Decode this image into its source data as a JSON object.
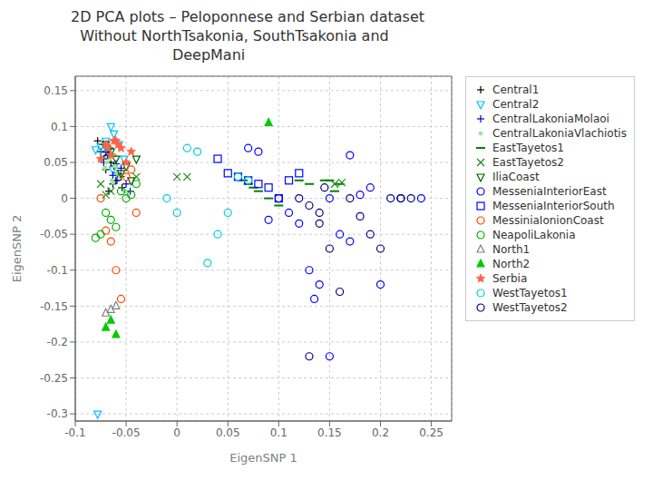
{
  "chart_data": {
    "type": "scatter",
    "title": "2D PCA plots – Peloponnese and Serbian dataset\n  Without NorthTsakonia, SouthTsakonia and\n                      DeepMani",
    "xlabel": "EigenSNP 1",
    "ylabel": "EigenSNP 2",
    "xlim": [
      -0.1,
      0.27
    ],
    "ylim": [
      -0.31,
      0.17
    ],
    "xticks": [
      -0.1,
      -0.05,
      0,
      0.05,
      0.1,
      0.15,
      0.2,
      0.25
    ],
    "yticks": [
      -0.3,
      -0.25,
      -0.2,
      -0.15,
      -0.1,
      -0.05,
      0,
      0.05,
      0.1,
      0.15
    ],
    "grid": true,
    "legend": "right",
    "series": [
      {
        "name": "Central1",
        "marker": "plus",
        "color": "#000000",
        "x": [
          -0.075,
          -0.068,
          -0.072,
          -0.065,
          -0.062,
          -0.07,
          -0.058,
          -0.055,
          -0.06,
          -0.063,
          -0.067,
          -0.073,
          -0.078,
          -0.054,
          -0.066
        ],
        "y": [
          0.065,
          0.06,
          0.055,
          0.05,
          0.045,
          0.04,
          0.035,
          0.03,
          0.025,
          0.02,
          0.01,
          0.075,
          0.08,
          0.015,
          0.07
        ]
      },
      {
        "name": "Central2",
        "marker": "triangle-down-open",
        "color": "#00BFFF",
        "x": [
          -0.057,
          -0.062,
          -0.07,
          -0.075,
          -0.08,
          -0.068,
          -0.072,
          -0.065,
          -0.063,
          -0.078,
          -0.052
        ],
        "y": [
          0.075,
          0.09,
          0.08,
          0.072,
          0.068,
          0.065,
          0.06,
          0.1,
          0.04,
          -0.3,
          0.055
        ]
      },
      {
        "name": "CentralLakoniaMolaoi",
        "marker": "plus",
        "color": "#0000CD",
        "x": [
          -0.068,
          -0.072,
          -0.06,
          -0.055,
          -0.063,
          -0.059,
          -0.05,
          -0.046,
          -0.07
        ],
        "y": [
          0.06,
          0.05,
          0.048,
          0.042,
          0.032,
          0.025,
          0.02,
          0.01,
          0.065
        ]
      },
      {
        "name": "CentralLakoniaVlachiotis",
        "marker": "point",
        "color": "#90EE90",
        "x": [
          -0.066,
          -0.061,
          -0.071,
          -0.059,
          -0.056,
          -0.064,
          -0.063,
          -0.069,
          -0.061,
          -0.051
        ],
        "y": [
          0.055,
          0.045,
          0.042,
          0.036,
          0.03,
          0.025,
          0.022,
          0.05,
          0.06,
          0.01
        ]
      },
      {
        "name": "EastTayetos1",
        "marker": "hline",
        "color": "#008000",
        "x": [
          0.065,
          0.07,
          0.075,
          0.08,
          0.09,
          0.1,
          0.12,
          0.145,
          0.155,
          0.13,
          0.15,
          0.16
        ],
        "y": [
          0.025,
          0.02,
          0.015,
          0.01,
          0.0,
          -0.01,
          0.025,
          0.025,
          0.01,
          0.02,
          0.025,
          0.02
        ]
      },
      {
        "name": "EastTayetos2",
        "marker": "x",
        "color": "#228B22",
        "x": [
          -0.075,
          -0.065,
          -0.07,
          -0.04,
          0.0,
          0.01,
          0.155,
          0.162
        ],
        "y": [
          0.02,
          0.01,
          0.005,
          0.03,
          0.03,
          0.03,
          0.02,
          0.022
        ]
      },
      {
        "name": "IliaCoast",
        "marker": "triangle-down-open",
        "color": "#006400",
        "x": [
          -0.07,
          -0.065,
          -0.06,
          -0.05,
          -0.04,
          -0.055,
          -0.045
        ],
        "y": [
          0.075,
          0.065,
          0.055,
          0.045,
          0.055,
          0.035,
          0.025
        ]
      },
      {
        "name": "MesseniaInteriorEast",
        "marker": "circle-open",
        "color": "#0000FF",
        "x": [
          0.07,
          0.08,
          0.09,
          0.1,
          0.11,
          0.12,
          0.13,
          0.14,
          0.15,
          0.16,
          0.17,
          0.18,
          0.19,
          0.2,
          0.22,
          0.24,
          0.15,
          0.17,
          0.135
        ],
        "y": [
          0.07,
          0.065,
          -0.03,
          0.0,
          -0.02,
          -0.035,
          -0.1,
          -0.12,
          -0.22,
          -0.05,
          -0.06,
          0.005,
          0.015,
          -0.12,
          0.0,
          0.0,
          0.0,
          0.06,
          -0.14
        ]
      },
      {
        "name": "MesseniaInteriorSouth",
        "marker": "square-open",
        "color": "#0000FF",
        "x": [
          0.04,
          0.05,
          0.06,
          0.07,
          0.08,
          0.09,
          0.1,
          0.11,
          0.12
        ],
        "y": [
          0.055,
          0.035,
          0.03,
          0.025,
          0.02,
          0.015,
          0.0,
          0.025,
          0.035
        ]
      },
      {
        "name": "MessiniaIonionCoast",
        "marker": "circle-open",
        "color": "#FF4500",
        "x": [
          -0.07,
          -0.065,
          -0.06,
          -0.055,
          -0.075,
          -0.05,
          -0.045,
          -0.04
        ],
        "y": [
          -0.045,
          -0.06,
          -0.1,
          -0.14,
          0.0,
          0.03,
          0.04,
          -0.02
        ]
      },
      {
        "name": "NeapoliLakonia",
        "marker": "circle-open",
        "color": "#00AA00",
        "x": [
          -0.04,
          -0.055,
          -0.045,
          -0.065,
          -0.07,
          -0.06,
          -0.075,
          -0.08,
          -0.05
        ],
        "y": [
          0.02,
          0.01,
          0.005,
          -0.03,
          -0.02,
          -0.04,
          -0.05,
          -0.055,
          0.0
        ]
      },
      {
        "name": "North1",
        "marker": "triangle-up-open",
        "color": "#808080",
        "x": [
          -0.065,
          -0.07,
          -0.06
        ],
        "y": [
          -0.155,
          -0.16,
          -0.15
        ]
      },
      {
        "name": "North2",
        "marker": "triangle-up",
        "color": "#00CC00",
        "x": [
          0.09,
          -0.065,
          -0.07,
          -0.06
        ],
        "y": [
          0.105,
          -0.17,
          -0.18,
          -0.19
        ]
      },
      {
        "name": "Serbia",
        "marker": "star",
        "color": "#FF6347",
        "x": [
          -0.055,
          -0.06,
          -0.065,
          -0.045,
          -0.07,
          -0.075,
          -0.05,
          -0.068,
          -0.058,
          -0.062
        ],
        "y": [
          0.07,
          0.08,
          0.06,
          0.065,
          0.075,
          0.055,
          0.05,
          0.07,
          0.075,
          0.08
        ]
      },
      {
        "name": "WestTayetos1",
        "marker": "circle-open",
        "color": "#00CED1",
        "x": [
          0.01,
          0.02,
          0.03,
          0.04,
          0.05,
          0.06,
          0.07,
          -0.01,
          0.0
        ],
        "y": [
          0.07,
          0.065,
          -0.09,
          -0.05,
          -0.02,
          0.03,
          0.025,
          0.0,
          -0.02
        ]
      },
      {
        "name": "WestTayetos2",
        "marker": "circle-open",
        "color": "#000080",
        "x": [
          0.12,
          0.13,
          0.14,
          0.15,
          0.16,
          0.17,
          0.18,
          0.19,
          0.2,
          0.21,
          0.22,
          0.23,
          0.13,
          0.14,
          0.145
        ],
        "y": [
          0.0,
          -0.01,
          -0.02,
          -0.07,
          -0.13,
          0.0,
          -0.025,
          -0.05,
          -0.07,
          0.0,
          0.0,
          0.0,
          -0.22,
          -0.035,
          0.015
        ]
      }
    ]
  }
}
